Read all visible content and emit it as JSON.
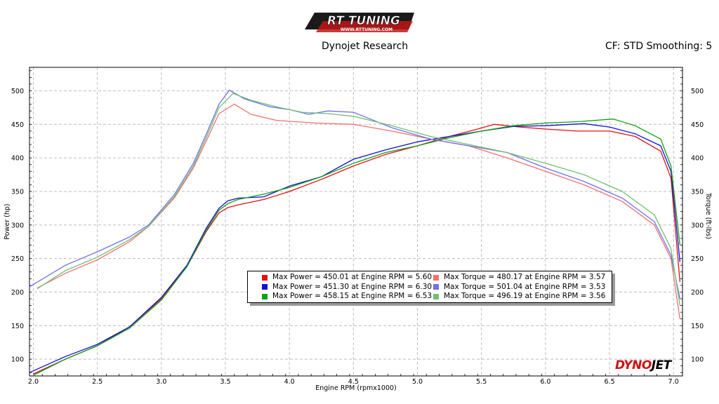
{
  "header": {
    "logo_text": "RT TUNING",
    "logo_subtext": "WWW.RTTUNING.COM",
    "title": "Dynojet Research",
    "correction": "CF: STD Smoothing: 5"
  },
  "watermark": {
    "brand_a": "DYNO",
    "brand_b": "JET"
  },
  "legend": {
    "left": [
      {
        "text": "Max Power = 450.01 at Engine RPM = 5.60",
        "color": "#e01010"
      },
      {
        "text": "Max Power = 451.30 at Engine RPM = 6.30",
        "color": "#1010d8"
      },
      {
        "text": "Max Power = 458.15 at Engine RPM = 6.53",
        "color": "#10a010"
      }
    ],
    "right": [
      {
        "text": "Max Torque = 480.17 at Engine RPM = 3.57",
        "color": "#f07070"
      },
      {
        "text": "Max Torque = 501.04 at Engine RPM = 3.53",
        "color": "#7070f0"
      },
      {
        "text": "Max Torque = 496.19 at Engine RPM = 3.56",
        "color": "#70c070"
      }
    ]
  },
  "chart_data": {
    "type": "line",
    "title": "Dynojet Research",
    "xlabel": "Engine RPM (rpmx1000)",
    "ylabel": "Power (hp)",
    "y2label": "Torque (ft-lbs)",
    "xlim": [
      1.97,
      7.07
    ],
    "ylim": [
      75,
      535
    ],
    "xticks": [
      "2.0",
      "2.5",
      "3.0",
      "3.5",
      "4.0",
      "4.5",
      "5.0",
      "5.5",
      "6.0",
      "6.5",
      "7.0"
    ],
    "yticks": [
      "100",
      "150",
      "200",
      "250",
      "300",
      "350",
      "400",
      "450",
      "500"
    ],
    "grid": true,
    "legend_position": "center-bottom",
    "series": [
      {
        "role": "power",
        "color": "#e01010",
        "x": [
          2.0,
          2.25,
          2.5,
          2.75,
          3.0,
          3.2,
          3.35,
          3.45,
          3.52,
          3.6,
          3.8,
          4.0,
          4.25,
          4.5,
          4.75,
          5.0,
          5.25,
          5.45,
          5.6,
          5.8,
          6.0,
          6.25,
          6.5,
          6.7,
          6.9,
          6.98,
          7.05
        ],
        "y": [
          78,
          100,
          120,
          148,
          190,
          238,
          290,
          318,
          326,
          330,
          338,
          350,
          368,
          388,
          405,
          418,
          432,
          442,
          450,
          446,
          443,
          440,
          440,
          432,
          410,
          370,
          215
        ]
      },
      {
        "role": "power",
        "color": "#1010d8",
        "x": [
          1.97,
          2.25,
          2.5,
          2.75,
          3.0,
          3.2,
          3.35,
          3.45,
          3.52,
          3.6,
          3.8,
          4.0,
          4.25,
          4.5,
          4.75,
          5.0,
          5.25,
          5.5,
          5.75,
          6.0,
          6.3,
          6.5,
          6.7,
          6.9,
          6.98,
          7.05
        ],
        "y": [
          80,
          104,
          122,
          148,
          192,
          240,
          295,
          325,
          336,
          340,
          342,
          358,
          372,
          398,
          412,
          424,
          432,
          440,
          447,
          448,
          451,
          446,
          436,
          418,
          380,
          245
        ]
      },
      {
        "role": "power",
        "color": "#10a010",
        "x": [
          2.0,
          2.25,
          2.5,
          2.75,
          3.0,
          3.2,
          3.35,
          3.45,
          3.52,
          3.6,
          3.8,
          4.0,
          4.25,
          4.5,
          4.75,
          5.0,
          5.25,
          5.5,
          5.75,
          6.0,
          6.25,
          6.53,
          6.7,
          6.9,
          6.98,
          7.05
        ],
        "y": [
          76,
          100,
          120,
          146,
          188,
          238,
          292,
          322,
          332,
          338,
          346,
          356,
          372,
          392,
          408,
          418,
          430,
          440,
          448,
          452,
          454,
          458,
          448,
          428,
          388,
          270
        ]
      },
      {
        "role": "torque",
        "color": "#f07070",
        "x": [
          2.03,
          2.25,
          2.5,
          2.75,
          2.9,
          3.1,
          3.25,
          3.35,
          3.45,
          3.57,
          3.7,
          3.9,
          4.2,
          4.5,
          4.8,
          5.1,
          5.4,
          5.7,
          6.0,
          6.3,
          6.6,
          6.85,
          6.98,
          7.05
        ],
        "y": [
          206,
          228,
          248,
          275,
          298,
          340,
          385,
          425,
          466,
          480,
          465,
          456,
          452,
          450,
          440,
          428,
          418,
          400,
          380,
          360,
          335,
          300,
          250,
          160
        ]
      },
      {
        "role": "torque",
        "color": "#7070f0",
        "x": [
          1.97,
          2.25,
          2.5,
          2.75,
          2.9,
          3.1,
          3.25,
          3.35,
          3.45,
          3.53,
          3.65,
          3.85,
          4.0,
          4.15,
          4.3,
          4.5,
          4.8,
          5.1,
          5.4,
          5.7,
          6.0,
          6.3,
          6.6,
          6.85,
          6.98,
          7.05
        ],
        "y": [
          208,
          240,
          260,
          282,
          300,
          345,
          392,
          435,
          480,
          501,
          488,
          476,
          472,
          465,
          470,
          468,
          445,
          428,
          418,
          408,
          385,
          365,
          340,
          305,
          255,
          190
        ]
      },
      {
        "role": "torque",
        "color": "#70c070",
        "x": [
          2.03,
          2.25,
          2.5,
          2.75,
          2.9,
          3.1,
          3.25,
          3.35,
          3.45,
          3.56,
          3.7,
          3.9,
          4.1,
          4.3,
          4.5,
          4.8,
          5.1,
          5.4,
          5.7,
          6.0,
          6.3,
          6.6,
          6.85,
          6.98,
          7.05
        ],
        "y": [
          205,
          232,
          252,
          278,
          298,
          342,
          388,
          430,
          475,
          496,
          486,
          476,
          468,
          466,
          462,
          448,
          432,
          420,
          408,
          392,
          375,
          350,
          315,
          265,
          180
        ]
      }
    ]
  }
}
